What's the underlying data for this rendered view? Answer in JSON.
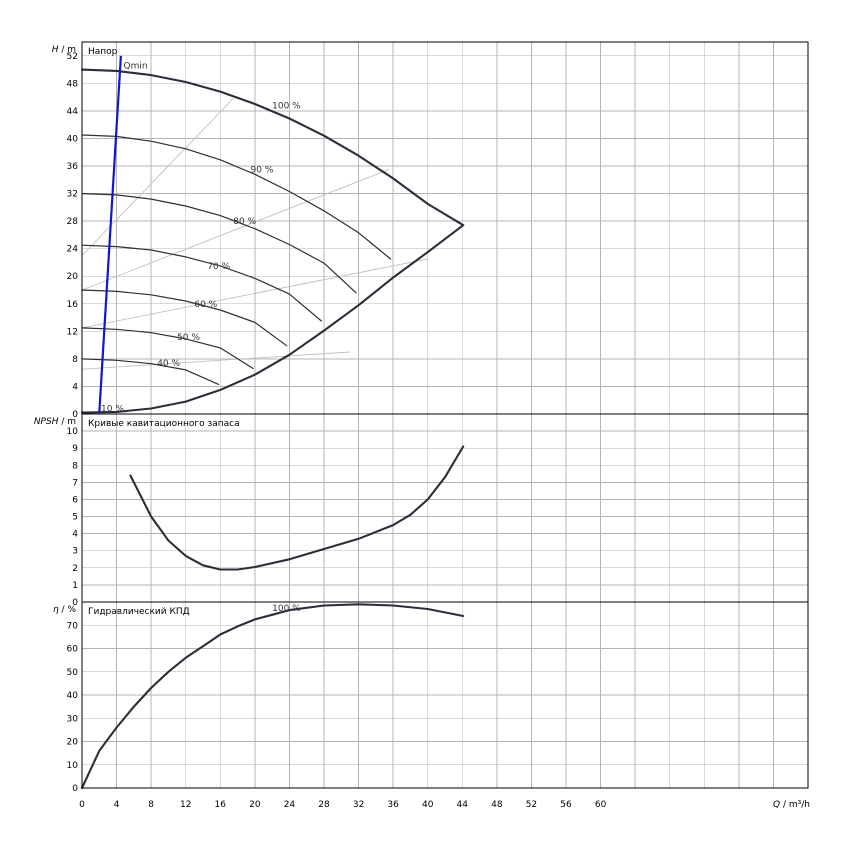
{
  "chart_data": [
    {
      "type": "line",
      "title": "Напор",
      "ylabel_var": "H",
      "ylabel_unit": "m",
      "xlim": [
        0,
        84
      ],
      "ylim": [
        0,
        54
      ],
      "yticks": [
        0,
        4,
        8,
        12,
        16,
        20,
        24,
        28,
        32,
        36,
        40,
        44,
        48,
        52
      ],
      "series": [
        {
          "name": "100 %",
          "x": [
            0,
            4,
            8,
            12,
            16,
            20,
            24,
            28,
            32,
            36,
            40,
            44.1
          ],
          "y": [
            50,
            49.8,
            49.2,
            48.2,
            46.8,
            45.0,
            42.9,
            40.4,
            37.5,
            34.2,
            30.5,
            27.4
          ]
        },
        {
          "name": "90 %",
          "x": [
            0,
            4,
            8,
            12,
            16,
            20,
            24,
            28,
            32,
            35.7
          ],
          "y": [
            40.5,
            40.3,
            39.6,
            38.5,
            36.9,
            34.8,
            32.3,
            29.5,
            26.3,
            22.5
          ]
        },
        {
          "name": "80 %",
          "x": [
            0,
            4,
            8,
            12,
            16,
            20,
            24,
            28,
            31.7
          ],
          "y": [
            32.0,
            31.8,
            31.2,
            30.2,
            28.8,
            26.9,
            24.6,
            21.9,
            17.6
          ]
        },
        {
          "name": "70 %",
          "x": [
            0,
            4,
            8,
            12,
            16,
            20,
            24,
            27.7
          ],
          "y": [
            24.5,
            24.3,
            23.8,
            22.8,
            21.5,
            19.7,
            17.4,
            13.5
          ]
        },
        {
          "name": "60 %",
          "x": [
            0,
            4,
            8,
            12,
            16,
            20,
            23.7
          ],
          "y": [
            18.0,
            17.8,
            17.3,
            16.4,
            15.1,
            13.3,
            9.9
          ]
        },
        {
          "name": "50 %",
          "x": [
            0,
            4,
            8,
            12,
            16,
            19.8
          ],
          "y": [
            12.5,
            12.3,
            11.8,
            10.9,
            9.6,
            6.6
          ]
        },
        {
          "name": "40 %",
          "x": [
            0,
            4,
            8,
            12,
            15.8
          ],
          "y": [
            8.0,
            7.8,
            7.3,
            6.4,
            4.3
          ]
        },
        {
          "name": "10 %",
          "x": [
            0,
            4,
            8,
            12,
            16,
            20,
            24,
            28,
            32,
            36,
            40,
            44.1
          ],
          "y": [
            0.2,
            0.3,
            0.8,
            1.8,
            3.5,
            5.7,
            8.6,
            12.1,
            15.8,
            19.8,
            23.5,
            27.4
          ]
        },
        {
          "name": "Qmin",
          "x": [
            2.0,
            4.5
          ],
          "y": [
            0.2,
            52.0
          ]
        }
      ],
      "isolines": [
        {
          "x": [
            0,
            17.5
          ],
          "y": [
            23.0,
            45.8
          ]
        },
        {
          "x": [
            0,
            35.5
          ],
          "y": [
            18.0,
            35.5
          ]
        },
        {
          "x": [
            0,
            40.0
          ],
          "y": [
            12.5,
            22.5
          ]
        },
        {
          "x": [
            0,
            31.0
          ],
          "y": [
            6.5,
            9.0
          ]
        }
      ],
      "labels": [
        {
          "text": "100 %",
          "x": 22.0,
          "y": 44.8
        },
        {
          "text": "90 %",
          "x": 19.5,
          "y": 35.5
        },
        {
          "text": "80 %",
          "x": 17.5,
          "y": 28.0
        },
        {
          "text": "70 %",
          "x": 14.5,
          "y": 21.5
        },
        {
          "text": "60 %",
          "x": 13.0,
          "y": 16.0
        },
        {
          "text": "50 %",
          "x": 11.0,
          "y": 11.2
        },
        {
          "text": "40 %",
          "x": 8.7,
          "y": 7.4
        },
        {
          "text": "10 %",
          "x": 2.2,
          "y": 0.8
        },
        {
          "text": "Qmin",
          "x": 4.8,
          "y": 50.6
        }
      ]
    },
    {
      "type": "line",
      "title": "Кривые кавитационного запаса",
      "ylabel_var": "NPSH",
      "ylabel_unit": "m",
      "xlim": [
        0,
        84
      ],
      "ylim": [
        0,
        11
      ],
      "yticks": [
        0,
        1,
        2,
        3,
        4,
        5,
        6,
        7,
        8,
        9,
        10
      ],
      "series": [
        {
          "name": "NPSH",
          "x": [
            5.6,
            8,
            10,
            12,
            14,
            16,
            18,
            20,
            24,
            28,
            32,
            36,
            38,
            40,
            42,
            44.1
          ],
          "y": [
            7.4,
            5.0,
            3.6,
            2.7,
            2.15,
            1.9,
            1.9,
            2.05,
            2.5,
            3.1,
            3.7,
            4.5,
            5.1,
            6.0,
            7.3,
            9.1
          ]
        }
      ]
    },
    {
      "type": "line",
      "title": "Гидравлический КПД",
      "ylabel_var": "η",
      "ylabel_unit": "%",
      "xlim": [
        0,
        84
      ],
      "ylim": [
        0,
        80
      ],
      "yticks": [
        0,
        10,
        20,
        30,
        40,
        50,
        60,
        70
      ],
      "xticks": [
        0,
        4,
        8,
        12,
        16,
        20,
        24,
        28,
        32,
        36,
        40,
        44,
        48,
        52,
        56,
        60
      ],
      "xlabel_var": "Q",
      "xlabel_unit": "m³/h",
      "series": [
        {
          "name": "100 %",
          "x": [
            0,
            2,
            4,
            6,
            8,
            10,
            12,
            14,
            16,
            18,
            20,
            22,
            24,
            28,
            32,
            36,
            40,
            44.1
          ],
          "y": [
            0,
            16,
            26,
            35,
            43,
            50,
            56,
            61,
            66,
            69.5,
            72.5,
            74.5,
            76.5,
            78.5,
            79,
            78.5,
            77,
            74
          ]
        }
      ],
      "labels": [
        {
          "text": "100 %",
          "x": 22.0,
          "y": 77.5
        }
      ]
    }
  ]
}
